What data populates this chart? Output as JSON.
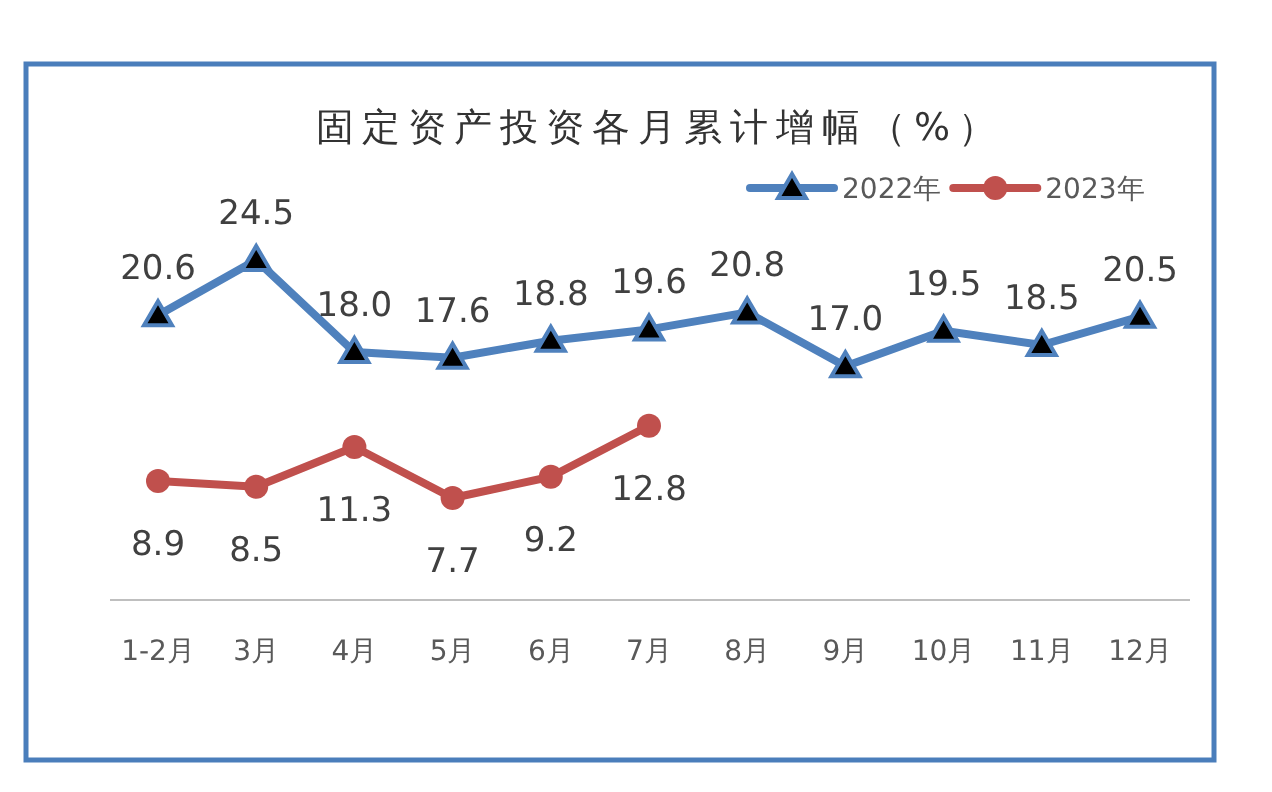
{
  "chart_data": {
    "type": "line",
    "title": "固定资产投资各月累计增幅（%）",
    "categories": [
      "1-2月",
      "3月",
      "4月",
      "5月",
      "6月",
      "7月",
      "8月",
      "9月",
      "10月",
      "11月",
      "12月"
    ],
    "series": [
      {
        "name": "2022年",
        "color": "#4f81bd",
        "marker": "triangle",
        "values": [
          20.6,
          24.5,
          18.0,
          17.6,
          18.8,
          19.6,
          20.8,
          17.0,
          19.5,
          18.5,
          20.5
        ],
        "value_labels": [
          "20.6",
          "24.5",
          "18.0",
          "17.6",
          "18.8",
          "19.6",
          "20.8",
          "17.0",
          "19.5",
          "18.5",
          "20.5"
        ]
      },
      {
        "name": "2023年",
        "color": "#c0504d",
        "marker": "circle",
        "values": [
          8.9,
          8.5,
          11.3,
          7.7,
          9.2,
          12.8,
          null,
          null,
          null,
          null,
          null
        ],
        "value_labels": [
          "8.9",
          "8.5",
          "11.3",
          "7.7",
          "9.2",
          "12.8",
          null,
          null,
          null,
          null,
          null
        ]
      }
    ],
    "legend": "top right"
  }
}
